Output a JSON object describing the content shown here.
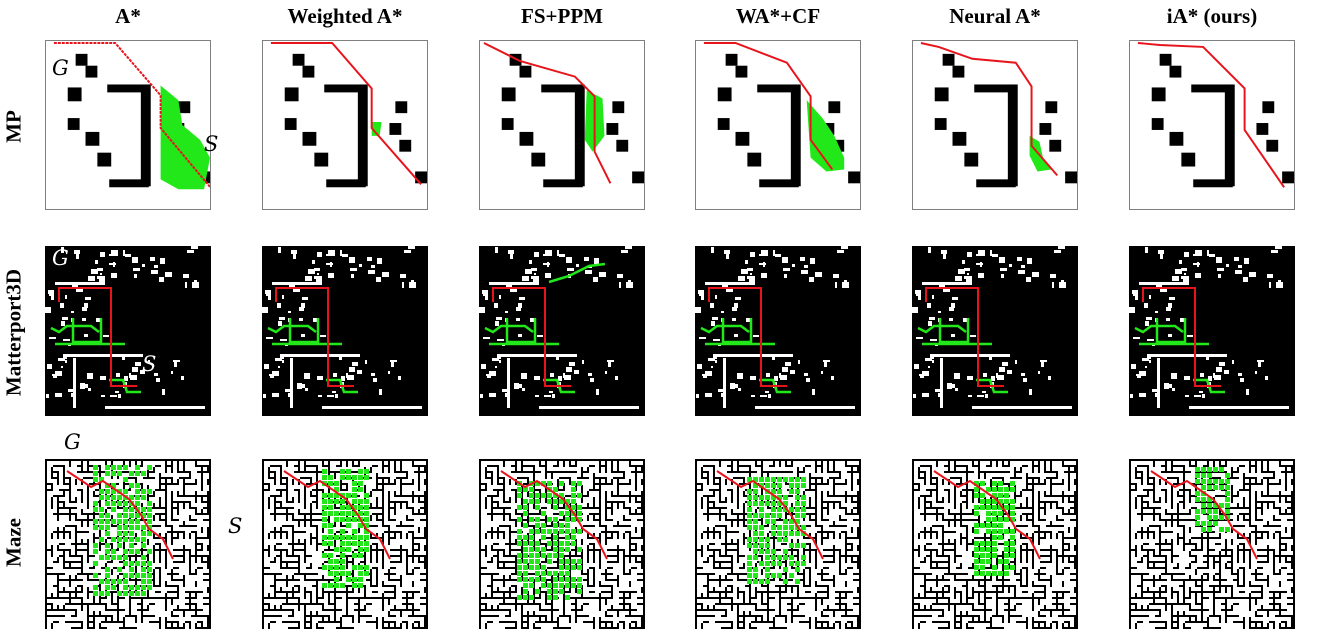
{
  "columns": [
    "A*",
    "Weighted A*",
    "FS+PPM",
    "WA*+CF",
    "Neural A*",
    "iA* (ours)"
  ],
  "rows": [
    "MP",
    "Matterport3D",
    "Maze"
  ],
  "labels": {
    "goal": "G",
    "start": "S"
  },
  "colors": {
    "path": "#e8141c",
    "explored": "#22e81a",
    "obstacle": "#000000",
    "free": "#ffffff",
    "panel_border": "#7f7f7f"
  },
  "panel_icon_names": [
    "mp-map-icon",
    "matterport-map-icon",
    "maze-map-icon"
  ]
}
